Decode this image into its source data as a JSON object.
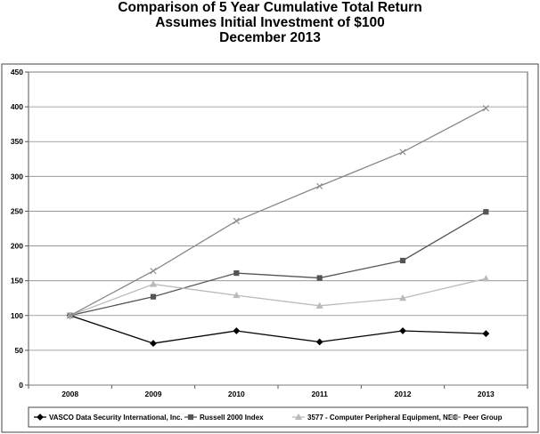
{
  "chart_data": {
    "type": "line",
    "title_lines": [
      "Comparison of 5 Year Cumulative Total Return",
      "Assumes Initial Investment of $100",
      "December 2013"
    ],
    "x": [
      "2008",
      "2009",
      "2010",
      "2011",
      "2012",
      "2013"
    ],
    "ylim": [
      0,
      450
    ],
    "yticks": [
      0,
      50,
      100,
      150,
      200,
      250,
      300,
      350,
      400,
      450
    ],
    "grid": true,
    "legend_position": "bottom",
    "series": [
      {
        "name": "VASCO Data Security International, Inc.",
        "values": [
          100,
          60,
          78,
          62,
          78,
          74
        ],
        "color": "#000000",
        "marker": "diamond"
      },
      {
        "name": "Russell 2000 Index",
        "values": [
          100,
          127,
          161,
          154,
          179,
          249
        ],
        "color": "#555555",
        "marker": "square"
      },
      {
        "name": "3577 - Computer Peripheral Equipment, NEC",
        "values": [
          100,
          145,
          129,
          114,
          125,
          153
        ],
        "color": "#bbbbbb",
        "marker": "triangle"
      },
      {
        "name": "Peer Group",
        "values": [
          100,
          164,
          236,
          286,
          335,
          398
        ],
        "color": "#888888",
        "marker": "x"
      }
    ]
  }
}
